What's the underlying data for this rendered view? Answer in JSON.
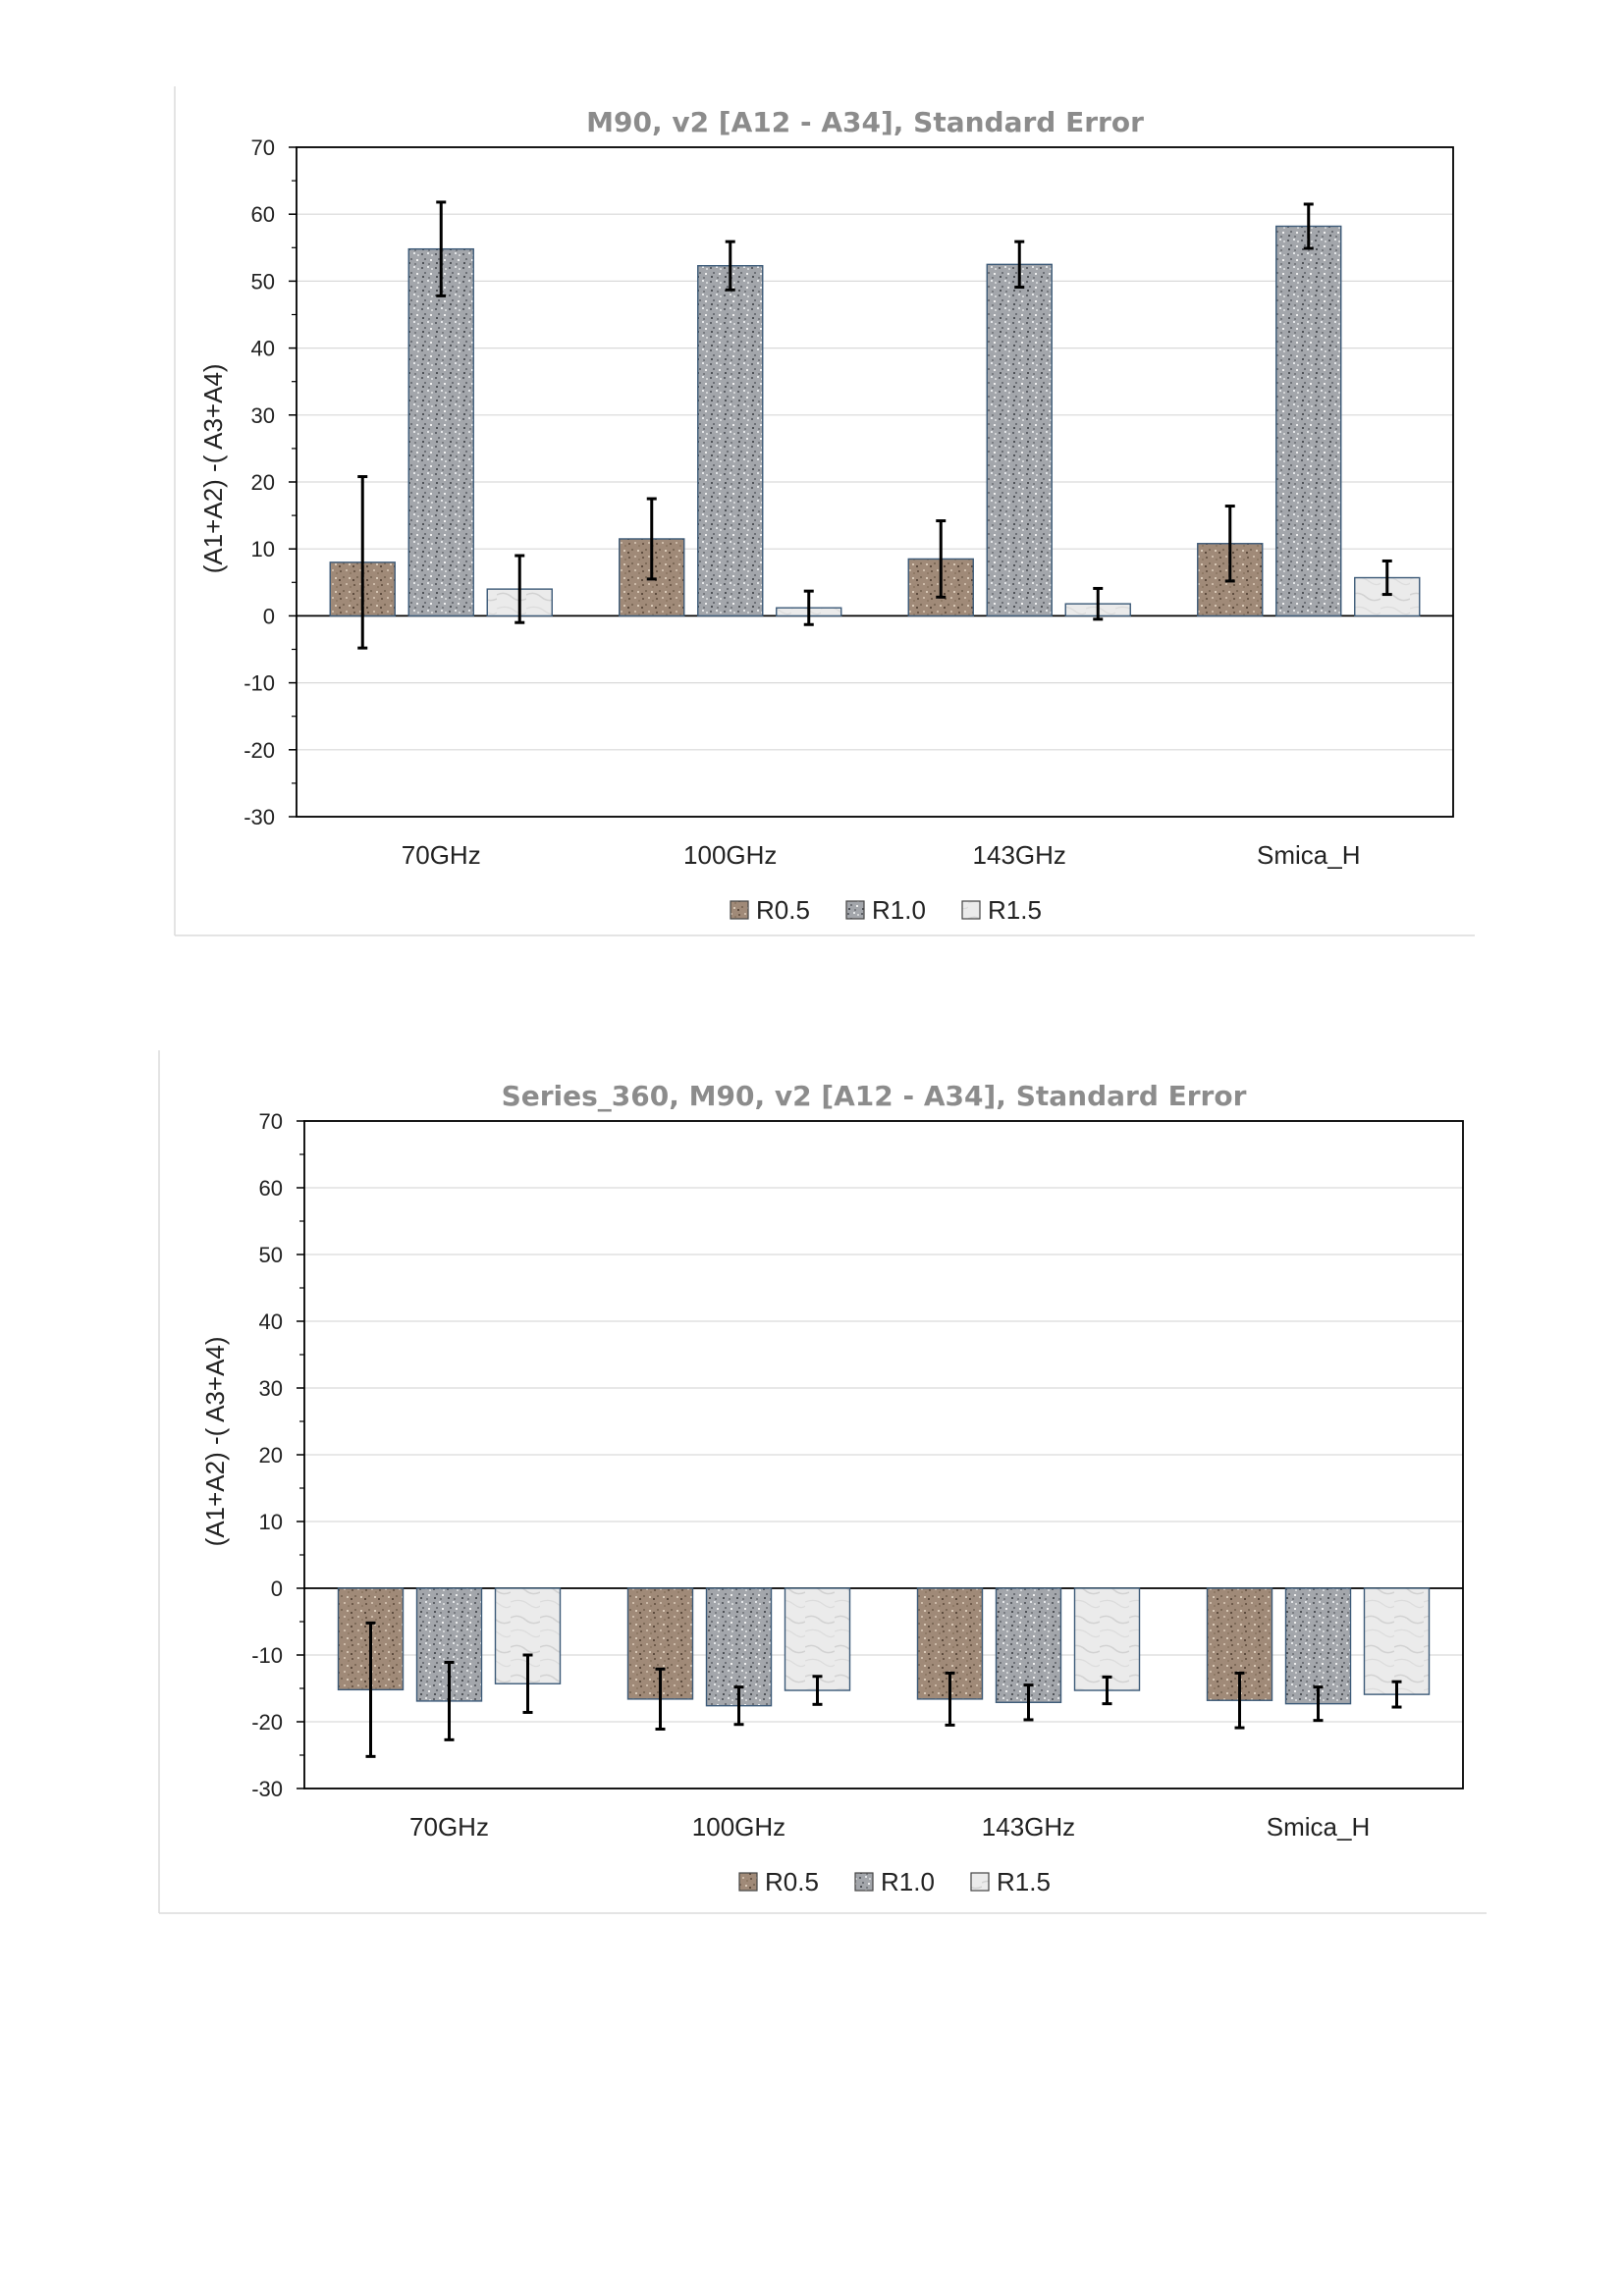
{
  "chart_data": [
    {
      "type": "bar",
      "title": "M90, v2  [A12 - A34],  Standard Error",
      "ylabel": "(A1+A2) -( A3+A4)",
      "xlabel": "",
      "ylim": [
        -30,
        70
      ],
      "ytick_step": 10,
      "grid": true,
      "legend_position": "bottom",
      "categories": [
        "70GHz",
        "100GHz",
        "143GHz",
        "Smica_H"
      ],
      "series": [
        {
          "name": "R0.5",
          "values": [
            8.0,
            11.5,
            8.5,
            10.8
          ],
          "errors": [
            12.8,
            6.0,
            5.7,
            5.6
          ]
        },
        {
          "name": "R1.0",
          "values": [
            54.8,
            52.3,
            52.5,
            58.2
          ],
          "errors": [
            7.0,
            3.6,
            3.4,
            3.3
          ]
        },
        {
          "name": "R1.5",
          "values": [
            4.0,
            1.2,
            1.8,
            5.7
          ],
          "errors": [
            5.0,
            2.5,
            2.3,
            2.5
          ]
        }
      ]
    },
    {
      "type": "bar",
      "title": "Series_360, M90, v2  [A12 - A34],  Standard Error",
      "ylabel": "(A1+A2) -( A3+A4)",
      "xlabel": "",
      "ylim": [
        -30,
        70
      ],
      "ytick_step": 10,
      "grid": true,
      "legend_position": "bottom",
      "categories": [
        "70GHz",
        "100GHz",
        "143GHz",
        "Smica_H"
      ],
      "series": [
        {
          "name": "R0.5",
          "values": [
            -15.2,
            -16.6,
            -16.6,
            -16.8
          ],
          "errors": [
            10.0,
            4.5,
            3.9,
            4.1
          ]
        },
        {
          "name": "R1.0",
          "values": [
            -16.9,
            -17.6,
            -17.1,
            -17.3
          ],
          "errors": [
            5.8,
            2.8,
            2.6,
            2.5
          ]
        },
        {
          "name": "R1.5",
          "values": [
            -14.3,
            -15.3,
            -15.3,
            -15.9
          ],
          "errors": [
            4.3,
            2.1,
            2.0,
            1.9
          ]
        }
      ]
    }
  ],
  "colors": {
    "series": [
      "#a08a78",
      "#a3a6ab",
      "#ebebeb"
    ],
    "bar_border": "#3c5a78",
    "grid": "#d9d9d9",
    "title": "#8c8c8c",
    "axis": "#000000"
  }
}
